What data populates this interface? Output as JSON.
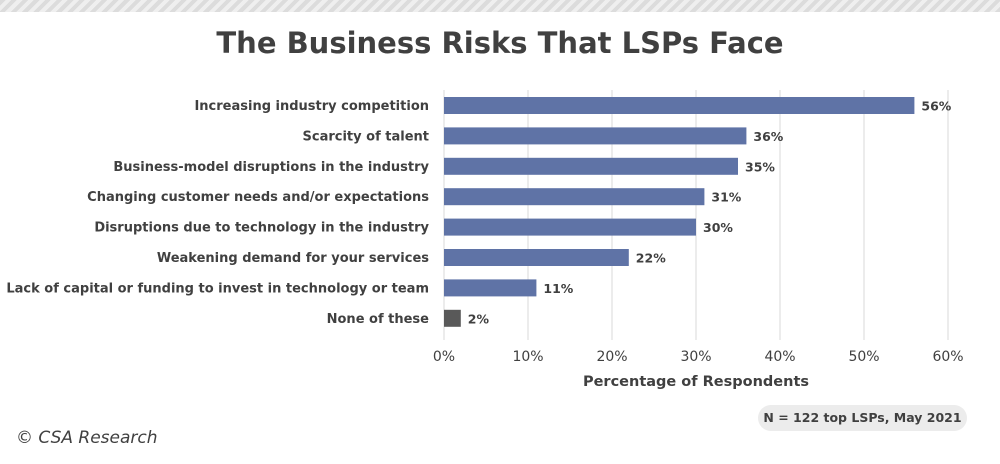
{
  "chart_data": {
    "type": "bar",
    "orientation": "horizontal",
    "title": "The Business Risks That LSPs Face",
    "categories": [
      "Increasing industry competition",
      "Scarcity of talent",
      "Business-model disruptions in the industry",
      "Changing customer needs and/or expectations",
      "Disruptions due to technology in the industry",
      "Weakening demand for your services",
      "Lack of capital or funding to invest in technology or team",
      "None of these"
    ],
    "values": [
      56,
      36,
      35,
      31,
      30,
      22,
      11,
      2
    ],
    "value_labels": [
      "56%",
      "36%",
      "35%",
      "31%",
      "30%",
      "22%",
      "11%",
      "2%"
    ],
    "xlabel": "Percentage of Respondents",
    "ylabel": "",
    "xlim": [
      0,
      60
    ],
    "xticks": [
      "0%",
      "10%",
      "20%",
      "30%",
      "40%",
      "50%",
      "60%"
    ],
    "grid": "vertical",
    "colors": {
      "bar": "#5f73a6",
      "none_bar": "#595959",
      "grid": "#d9d9d9",
      "text": "#404040"
    }
  },
  "note": "N = 122 top LSPs, May 2021",
  "copyright": "© CSA Research"
}
